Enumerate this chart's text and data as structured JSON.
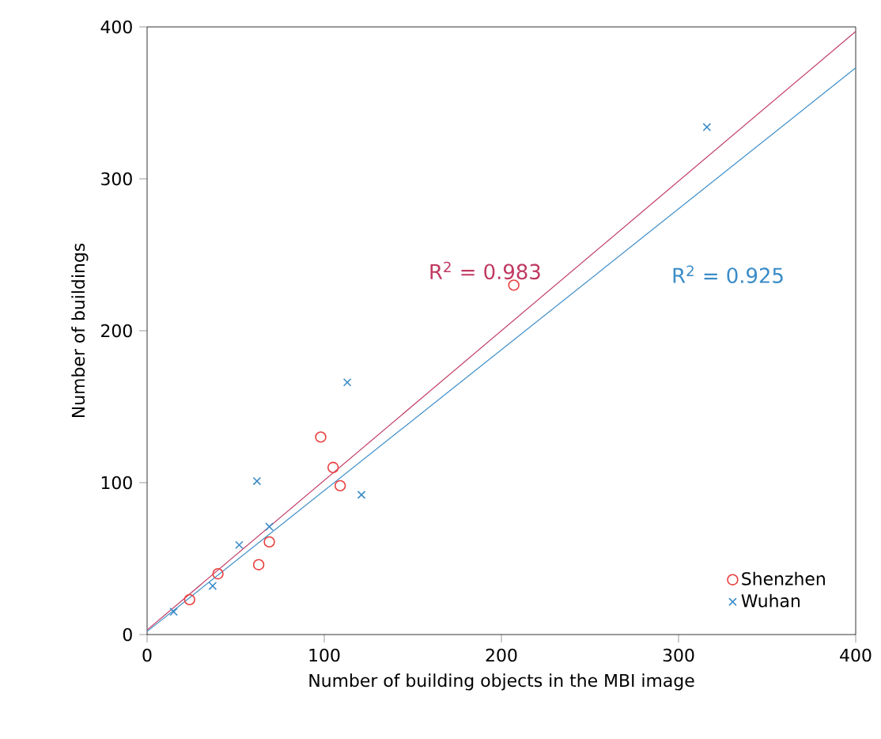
{
  "chart_data": {
    "type": "scatter",
    "xlabel": "Number of building objects in the MBI image",
    "ylabel": "Number of buildings",
    "xlim": [
      0,
      400
    ],
    "ylim": [
      0,
      400
    ],
    "xticks": [
      0,
      100,
      200,
      300,
      400
    ],
    "yticks": [
      0,
      100,
      200,
      300,
      400
    ],
    "legend": "bottom right",
    "series": [
      {
        "name": "Shenzhen",
        "marker": "circle",
        "color": "#e8413f",
        "x": [
          24,
          40,
          63,
          69,
          98,
          105,
          109,
          207
        ],
        "values": [
          23,
          40,
          46,
          61,
          130,
          110,
          98,
          230
        ]
      },
      {
        "name": "Wuhan",
        "marker": "cross",
        "color": "#3a8cc8",
        "x": [
          15,
          37,
          52,
          62,
          69,
          113,
          121,
          316
        ],
        "values": [
          15,
          32,
          59,
          101,
          71,
          166,
          92,
          334
        ]
      },
      {
        "type": "line",
        "color": "#c03a62",
        "x": [
          0,
          400
        ],
        "values": [
          3,
          397
        ]
      },
      {
        "type": "line",
        "color": "#3a8cc8",
        "x": [
          0,
          400
        ],
        "values": [
          2,
          373
        ]
      }
    ],
    "annotations": [
      "R$^{2}$ = 0.983",
      "R$^{2}$ = 0.925"
    ]
  }
}
